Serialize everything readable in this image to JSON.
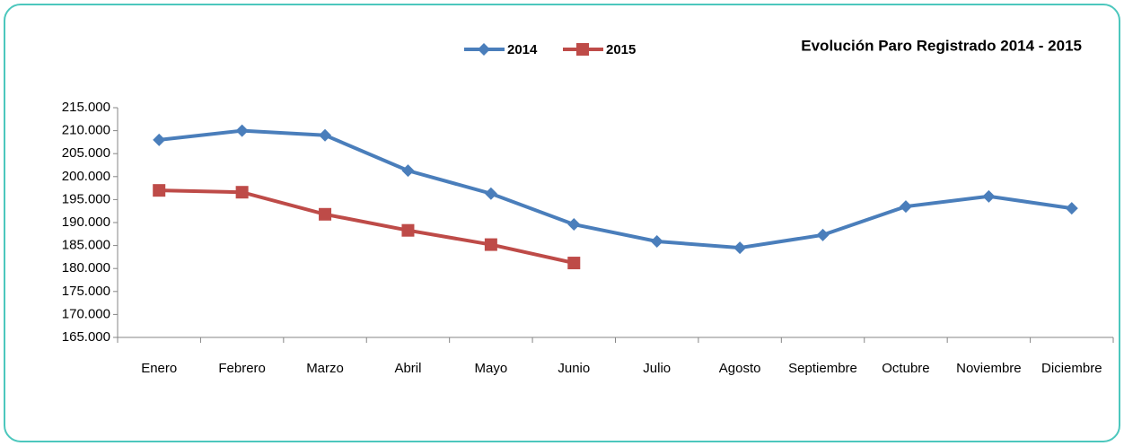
{
  "chart_data": {
    "type": "line",
    "title": "Evolución Paro Registrado 2014 - 2015",
    "categories": [
      "Enero",
      "Febrero",
      "Marzo",
      "Abril",
      "Mayo",
      "Junio",
      "Julio",
      "Agosto",
      "Septiembre",
      "Octubre",
      "Noviembre",
      "Diciembre"
    ],
    "series": [
      {
        "name": "2014",
        "color": "#4a7ebb",
        "marker": "diamond",
        "values": [
          208000,
          210000,
          209000,
          201300,
          196300,
          189600,
          185900,
          184500,
          187300,
          193500,
          195700,
          193100
        ]
      },
      {
        "name": "2015",
        "color": "#be4b48",
        "marker": "square",
        "values": [
          197000,
          196600,
          191800,
          188300,
          185200,
          181200,
          null,
          null,
          null,
          null,
          null,
          null
        ]
      }
    ],
    "ylim": [
      165000,
      215000
    ],
    "yticks": [
      {
        "value": 165000,
        "label": "165.000"
      },
      {
        "value": 170000,
        "label": "170.000"
      },
      {
        "value": 175000,
        "label": "175.000"
      },
      {
        "value": 180000,
        "label": "180.000"
      },
      {
        "value": 185000,
        "label": "185.000"
      },
      {
        "value": 190000,
        "label": "190.000"
      },
      {
        "value": 195000,
        "label": "195.000"
      },
      {
        "value": 200000,
        "label": "200.000"
      },
      {
        "value": 205000,
        "label": "205.000"
      },
      {
        "value": 210000,
        "label": "210.000"
      },
      {
        "value": 215000,
        "label": "215.000"
      }
    ],
    "grid": false
  }
}
